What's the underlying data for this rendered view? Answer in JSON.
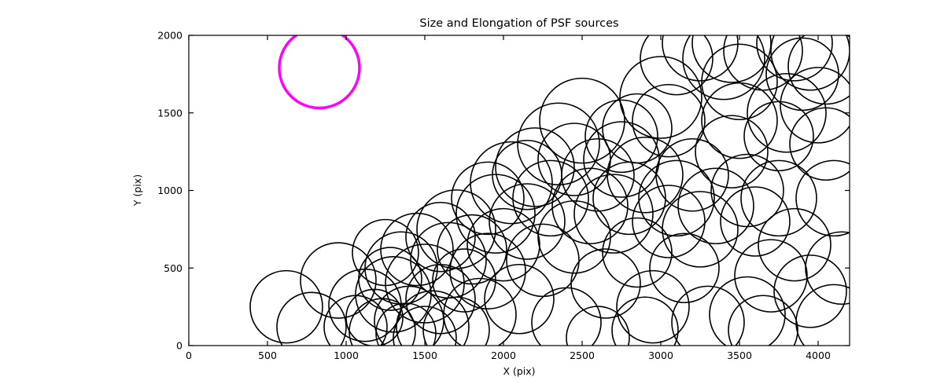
{
  "chart_data": {
    "type": "scatter",
    "title": "Size and Elongation of PSF sources",
    "xlabel": "X (pix)",
    "ylabel": "Y (pix)",
    "xlim": [
      0,
      4200
    ],
    "ylim": [
      0,
      2000
    ],
    "x_ticks": [
      0,
      500,
      1000,
      1500,
      2000,
      2500,
      3000,
      3500,
      4000
    ],
    "y_ticks": [
      0,
      500,
      1000,
      1500,
      2000
    ],
    "grid": false,
    "legend": "none",
    "marker_style": "open-circle",
    "circle_color": "#000000",
    "circle_stroke_width": 1.6,
    "highlight_circle": {
      "x": 830,
      "y": 1790,
      "r": 255,
      "color": "#FF00FF",
      "stroke_width": 3.5
    },
    "circles": [
      [
        620,
        250,
        230
      ],
      [
        780,
        120,
        220
      ],
      [
        950,
        420,
        240
      ],
      [
        1120,
        260,
        230
      ],
      [
        1060,
        120,
        200
      ],
      [
        1230,
        90,
        210
      ],
      [
        1300,
        330,
        240
      ],
      [
        1400,
        160,
        220
      ],
      [
        1180,
        180,
        180
      ],
      [
        1350,
        500,
        230
      ],
      [
        1500,
        400,
        250
      ],
      [
        1280,
        430,
        200
      ],
      [
        1450,
        620,
        230
      ],
      [
        1600,
        300,
        220
      ],
      [
        1550,
        120,
        230
      ],
      [
        1650,
        550,
        240
      ],
      [
        1700,
        750,
        250
      ],
      [
        1750,
        420,
        200
      ],
      [
        1850,
        200,
        230
      ],
      [
        1800,
        620,
        220
      ],
      [
        1900,
        480,
        240
      ],
      [
        1950,
        850,
        250
      ],
      [
        2000,
        650,
        230
      ],
      [
        2050,
        1050,
        260
      ],
      [
        2100,
        300,
        220
      ],
      [
        2150,
        800,
        240
      ],
      [
        2200,
        1150,
        250
      ],
      [
        2250,
        550,
        230
      ],
      [
        2300,
        950,
        240
      ],
      [
        2350,
        1300,
        260
      ],
      [
        2400,
        150,
        220
      ],
      [
        2450,
        700,
        230
      ],
      [
        2500,
        1450,
        270
      ],
      [
        2550,
        900,
        240
      ],
      [
        2600,
        1100,
        230
      ],
      [
        2650,
        400,
        220
      ],
      [
        2700,
        850,
        250
      ],
      [
        2750,
        1200,
        240
      ],
      [
        2800,
        950,
        230
      ],
      [
        2850,
        600,
        220
      ],
      [
        2900,
        1100,
        240
      ],
      [
        2950,
        250,
        230
      ],
      [
        3000,
        1600,
        260
      ],
      [
        3050,
        800,
        230
      ],
      [
        3100,
        950,
        240
      ],
      [
        3150,
        500,
        220
      ],
      [
        3200,
        1100,
        230
      ],
      [
        3250,
        750,
        240
      ],
      [
        3300,
        150,
        230
      ],
      [
        3350,
        900,
        240
      ],
      [
        3400,
        1850,
        260
      ],
      [
        3450,
        1950,
        250
      ],
      [
        3500,
        1700,
        240
      ],
      [
        3550,
        1000,
        230
      ],
      [
        3600,
        800,
        220
      ],
      [
        3650,
        1900,
        250
      ],
      [
        3700,
        450,
        230
      ],
      [
        3750,
        950,
        240
      ],
      [
        3800,
        1500,
        250
      ],
      [
        3850,
        1950,
        240
      ],
      [
        3900,
        1750,
        230
      ],
      [
        3950,
        1900,
        250
      ],
      [
        4000,
        1550,
        240
      ],
      [
        4050,
        1300,
        230
      ],
      [
        4100,
        950,
        240
      ],
      [
        4150,
        500,
        230
      ],
      [
        4100,
        150,
        240
      ],
      [
        3950,
        350,
        230
      ],
      [
        3550,
        200,
        240
      ],
      [
        3650,
        100,
        220
      ],
      [
        3850,
        650,
        230
      ],
      [
        4050,
        1800,
        240
      ],
      [
        2600,
        50,
        200
      ],
      [
        2900,
        100,
        210
      ],
      [
        1500,
        50,
        200
      ],
      [
        1700,
        100,
        210
      ],
      [
        1380,
        80,
        190
      ],
      [
        2750,
        1350,
        230
      ],
      [
        2850,
        1400,
        220
      ],
      [
        3050,
        1450,
        230
      ],
      [
        3500,
        1450,
        240
      ],
      [
        3450,
        1250,
        230
      ],
      [
        3750,
        1350,
        220
      ],
      [
        2450,
        1200,
        230
      ],
      [
        2150,
        1100,
        220
      ],
      [
        1900,
        950,
        230
      ],
      [
        1600,
        700,
        220
      ],
      [
        1250,
        600,
        210
      ],
      [
        3250,
        1950,
        240
      ],
      [
        3100,
        1850,
        230
      ]
    ]
  },
  "layout_note_values": {
    "tick_count_x": 9,
    "tick_count_y": 5
  }
}
